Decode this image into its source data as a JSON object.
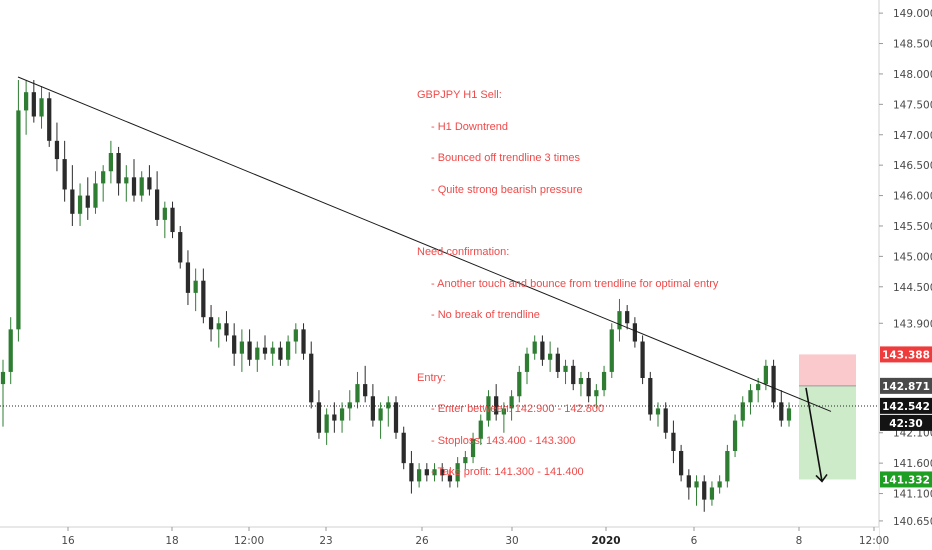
{
  "colors": {
    "up": "#2e7d32",
    "down": "#2b2b2b",
    "stop_zone": "#f9c9cc",
    "target_zone": "#cdebc9",
    "stop_tag": "#ef3b3b",
    "target_tag": "#1e9e22",
    "dark_tag": "#4a4a4a",
    "black_tag": "#131313",
    "annotation": "#ef4a4a",
    "trendline": "#1a1a1a",
    "dotted_line": "#222222"
  },
  "annotation": {
    "title": "GBPJPY H1 Sell:",
    "points": [
      "- H1 Downtrend",
      "- Bounced off trendline 3 times",
      "- Quite strong bearish pressure"
    ],
    "confirm_title": "Need confirmation:",
    "confirm_points": [
      "- Another touch and bounce from trendline for optimal entry",
      "- No break of trendline"
    ],
    "entry_title": "Entry:",
    "entry_points": [
      "- Enter between: 142.900 - 142.800",
      "- Stoploss: 143.400 - 143.300",
      "- Take profit: 141.300 - 141.400"
    ]
  },
  "chart_data": {
    "type": "candlestick",
    "title": "",
    "xlabel": "",
    "ylabel": "",
    "ylim": [
      140.55,
      149.15
    ],
    "x_tick_labels": [
      "16",
      "18",
      "12:00",
      "23",
      "26",
      "30",
      "2020",
      "6",
      "8",
      "12:00"
    ],
    "y_tick_labels": [
      "149.000",
      "148.500",
      "148.000",
      "147.500",
      "147.000",
      "146.500",
      "146.000",
      "145.500",
      "145.000",
      "144.500",
      "143.900",
      "142.100",
      "141.600",
      "141.100",
      "140.650"
    ],
    "price_tags": {
      "stop": "143.388",
      "entry": "142.871",
      "last": "142.542",
      "countdown": "42:30",
      "target": "141.332"
    },
    "trendline": {
      "from": 147.95,
      "to": 142.45
    },
    "current_price": 142.54,
    "position": {
      "stop": 143.388,
      "entry": 142.871,
      "target": 141.332
    },
    "series": [
      {
        "values": [
          [
            142.9,
            143.3,
            142.2,
            143.1
          ],
          [
            143.1,
            144.0,
            142.9,
            143.8
          ],
          [
            143.8,
            147.9,
            143.6,
            147.4
          ],
          [
            147.4,
            147.9,
            147.0,
            147.7
          ],
          [
            147.7,
            147.9,
            147.2,
            147.3
          ],
          [
            147.3,
            147.8,
            147.1,
            147.6
          ],
          [
            147.6,
            147.7,
            146.8,
            146.9
          ],
          [
            146.9,
            147.2,
            146.4,
            146.6
          ],
          [
            146.6,
            146.9,
            145.9,
            146.1
          ],
          [
            146.1,
            146.5,
            145.5,
            145.7
          ],
          [
            145.7,
            146.2,
            145.5,
            146.0
          ],
          [
            146.0,
            146.3,
            145.6,
            145.8
          ],
          [
            145.8,
            146.4,
            145.7,
            146.2
          ],
          [
            146.2,
            146.5,
            145.9,
            146.4
          ],
          [
            146.4,
            146.9,
            146.2,
            146.7
          ],
          [
            146.7,
            146.8,
            146.0,
            146.2
          ],
          [
            146.2,
            146.5,
            145.9,
            146.3
          ],
          [
            146.3,
            146.6,
            145.9,
            146.0
          ],
          [
            146.0,
            146.4,
            145.9,
            146.3
          ],
          [
            146.3,
            146.5,
            146.0,
            146.1
          ],
          [
            146.1,
            146.4,
            145.5,
            145.6
          ],
          [
            145.6,
            145.9,
            145.3,
            145.8
          ],
          [
            145.8,
            145.9,
            145.3,
            145.4
          ],
          [
            145.4,
            145.5,
            144.8,
            144.9
          ],
          [
            144.9,
            145.1,
            144.2,
            144.4
          ],
          [
            144.4,
            144.8,
            144.1,
            144.6
          ],
          [
            144.6,
            144.8,
            143.9,
            144.0
          ],
          [
            144.0,
            144.2,
            143.6,
            143.8
          ],
          [
            143.8,
            144.0,
            143.5,
            143.9
          ],
          [
            143.9,
            144.1,
            143.6,
            143.7
          ],
          [
            143.7,
            143.9,
            143.2,
            143.4
          ],
          [
            143.4,
            143.8,
            143.1,
            143.6
          ],
          [
            143.6,
            143.8,
            143.2,
            143.3
          ],
          [
            143.3,
            143.6,
            143.1,
            143.5
          ],
          [
            143.5,
            143.7,
            143.3,
            143.4
          ],
          [
            143.4,
            143.6,
            143.2,
            143.5
          ],
          [
            143.5,
            143.6,
            143.2,
            143.3
          ],
          [
            143.3,
            143.7,
            143.2,
            143.6
          ],
          [
            143.6,
            143.9,
            143.4,
            143.8
          ],
          [
            143.8,
            143.9,
            143.3,
            143.4
          ],
          [
            143.4,
            143.6,
            142.5,
            142.6
          ],
          [
            142.6,
            142.8,
            142.0,
            142.1
          ],
          [
            142.1,
            142.5,
            141.9,
            142.4
          ],
          [
            142.4,
            142.6,
            142.1,
            142.3
          ],
          [
            142.3,
            142.6,
            142.1,
            142.5
          ],
          [
            142.5,
            142.8,
            142.3,
            142.6
          ],
          [
            142.6,
            143.1,
            142.5,
            142.9
          ],
          [
            142.9,
            143.2,
            142.6,
            142.7
          ],
          [
            142.7,
            142.9,
            142.2,
            142.3
          ],
          [
            142.3,
            142.6,
            142.0,
            142.5
          ],
          [
            142.5,
            142.7,
            142.2,
            142.6
          ],
          [
            142.6,
            142.7,
            142.0,
            142.1
          ],
          [
            142.1,
            142.2,
            141.5,
            141.6
          ],
          [
            141.6,
            141.8,
            141.1,
            141.3
          ],
          [
            141.3,
            141.6,
            141.2,
            141.5
          ],
          [
            141.5,
            141.6,
            141.3,
            141.4
          ],
          [
            141.4,
            141.6,
            141.3,
            141.5
          ],
          [
            141.5,
            141.6,
            141.3,
            141.4
          ],
          [
            141.4,
            141.5,
            141.2,
            141.3
          ],
          [
            141.3,
            141.7,
            141.2,
            141.6
          ],
          [
            141.6,
            141.8,
            141.5,
            141.7
          ],
          [
            141.7,
            142.1,
            141.6,
            142.0
          ],
          [
            142.0,
            142.4,
            141.9,
            142.3
          ],
          [
            142.3,
            142.8,
            142.2,
            142.7
          ],
          [
            142.7,
            142.9,
            142.3,
            142.4
          ],
          [
            142.4,
            142.6,
            142.1,
            142.5
          ],
          [
            142.5,
            142.8,
            142.3,
            142.7
          ],
          [
            142.7,
            143.2,
            142.6,
            143.1
          ],
          [
            143.1,
            143.5,
            142.9,
            143.4
          ],
          [
            143.4,
            143.7,
            143.3,
            143.6
          ],
          [
            143.6,
            143.7,
            143.2,
            143.3
          ],
          [
            143.3,
            143.6,
            143.1,
            143.4
          ],
          [
            143.4,
            143.5,
            143.0,
            143.1
          ],
          [
            143.1,
            143.3,
            142.9,
            143.2
          ],
          [
            143.2,
            143.3,
            142.8,
            142.9
          ],
          [
            142.9,
            143.1,
            142.7,
            143.0
          ],
          [
            143.0,
            143.1,
            142.6,
            142.7
          ],
          [
            142.7,
            142.9,
            142.5,
            142.8
          ],
          [
            142.8,
            143.2,
            142.7,
            143.1
          ],
          [
            143.1,
            143.9,
            143.0,
            143.8
          ],
          [
            143.8,
            144.3,
            143.6,
            144.1
          ],
          [
            144.1,
            144.2,
            143.8,
            143.9
          ],
          [
            143.9,
            144.0,
            143.5,
            143.6
          ],
          [
            143.6,
            143.7,
            142.9,
            143.0
          ],
          [
            143.0,
            143.1,
            142.3,
            142.4
          ],
          [
            142.4,
            142.6,
            142.2,
            142.5
          ],
          [
            142.5,
            142.6,
            142.0,
            142.1
          ],
          [
            142.1,
            142.3,
            141.6,
            141.8
          ],
          [
            141.8,
            141.9,
            141.3,
            141.4
          ],
          [
            141.4,
            141.5,
            141.0,
            141.2
          ],
          [
            141.2,
            141.4,
            140.9,
            141.3
          ],
          [
            141.3,
            141.4,
            140.8,
            141.0
          ],
          [
            141.0,
            141.3,
            140.9,
            141.2
          ],
          [
            141.2,
            141.4,
            141.1,
            141.3
          ],
          [
            141.3,
            141.9,
            141.2,
            141.8
          ],
          [
            141.8,
            142.4,
            141.7,
            142.3
          ],
          [
            142.3,
            142.7,
            142.2,
            142.6
          ],
          [
            142.6,
            142.9,
            142.4,
            142.8
          ],
          [
            142.8,
            143.0,
            142.6,
            142.9
          ],
          [
            142.9,
            143.3,
            142.8,
            143.2
          ],
          [
            143.2,
            143.3,
            142.5,
            142.6
          ],
          [
            142.6,
            142.8,
            142.2,
            142.3
          ],
          [
            142.3,
            142.6,
            142.2,
            142.5
          ]
        ]
      }
    ]
  }
}
